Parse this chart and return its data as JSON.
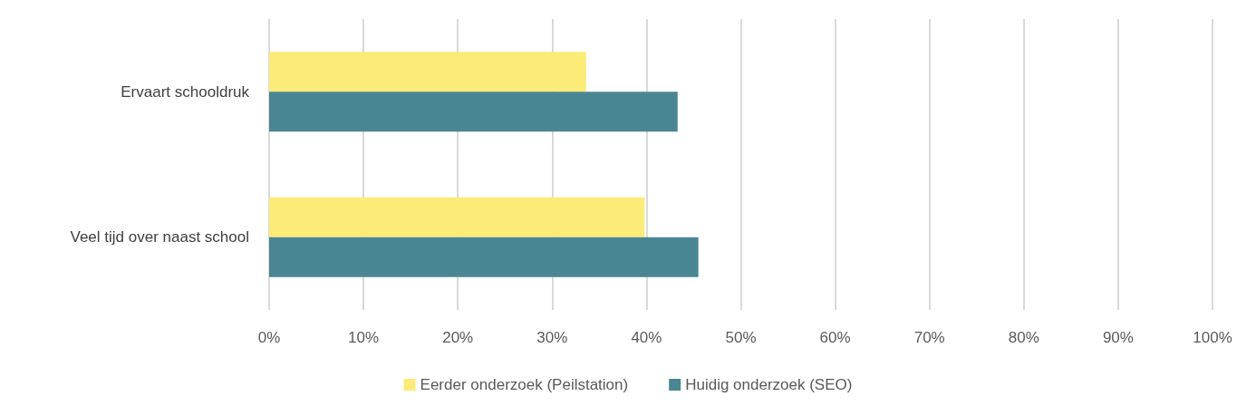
{
  "chart_data": {
    "type": "bar",
    "orientation": "horizontal",
    "categories": [
      "Ervaart schooldruk",
      "Veel tijd over naast school"
    ],
    "series": [
      {
        "name": "Eerder onderzoek (Peilstation)",
        "color": "#fdeb78",
        "values": [
          33.6,
          39.8
        ]
      },
      {
        "name": "Huidig onderzoek (SEO)",
        "color": "#4a8692",
        "values": [
          43.3,
          45.5
        ]
      }
    ],
    "xlim": [
      0,
      100
    ],
    "xticks": [
      {
        "value": 0,
        "label": "0%"
      },
      {
        "value": 10,
        "label": "10%"
      },
      {
        "value": 20,
        "label": "20%"
      },
      {
        "value": 30,
        "label": "30%"
      },
      {
        "value": 40,
        "label": "40%"
      },
      {
        "value": 50,
        "label": "50%"
      },
      {
        "value": 60,
        "label": "60%"
      },
      {
        "value": 70,
        "label": "70%"
      },
      {
        "value": 80,
        "label": "80%"
      },
      {
        "value": 90,
        "label": "90%"
      },
      {
        "value": 100,
        "label": "100%"
      }
    ],
    "grid": "x",
    "legend": "bottom"
  }
}
